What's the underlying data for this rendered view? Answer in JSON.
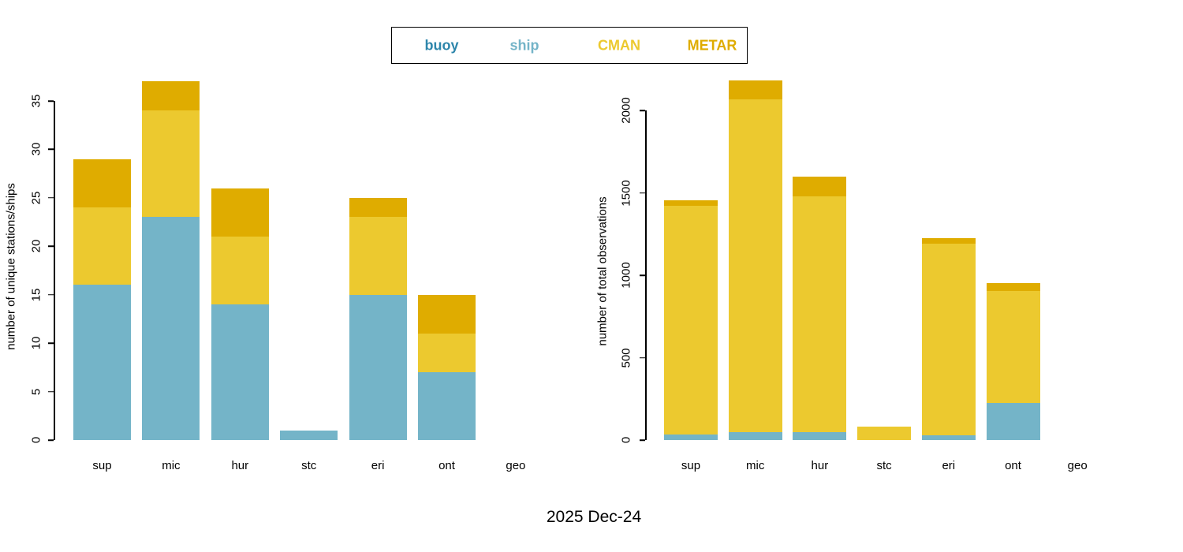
{
  "caption": "2025 Dec-24",
  "legend": {
    "position": "top-center",
    "items": [
      {
        "label": "buoy",
        "color": "#2E86AB"
      },
      {
        "label": "ship",
        "color": "#74B4C8"
      },
      {
        "label": "CMAN",
        "color": "#ECC92F"
      },
      {
        "label": "METAR",
        "color": "#DFAC00"
      }
    ]
  },
  "chart_data": [
    {
      "type": "bar",
      "stacked": true,
      "title": "",
      "xlabel": "",
      "ylabel": "number of unique stations/ships",
      "categories": [
        "sup",
        "mic",
        "hur",
        "stc",
        "eri",
        "ont",
        "geo"
      ],
      "yticks": [
        0,
        5,
        10,
        15,
        20,
        25,
        30,
        35
      ],
      "ylim": [
        0,
        38
      ],
      "grid": false,
      "series": [
        {
          "name": "buoy",
          "color": "#2E86AB",
          "values": [
            0,
            0,
            0,
            0,
            0,
            0,
            0
          ]
        },
        {
          "name": "ship",
          "color": "#74B4C8",
          "values": [
            16,
            23,
            14,
            1,
            15,
            7,
            0
          ]
        },
        {
          "name": "CMAN",
          "color": "#ECC92F",
          "values": [
            8,
            11,
            7,
            0,
            8,
            4,
            0
          ]
        },
        {
          "name": "METAR",
          "color": "#DFAC00",
          "values": [
            5,
            3,
            5,
            0,
            2,
            4,
            0
          ]
        }
      ],
      "totals": [
        29,
        37,
        26,
        1,
        25,
        15,
        0
      ]
    },
    {
      "type": "bar",
      "stacked": true,
      "title": "",
      "xlabel": "",
      "ylabel": "number of total observations",
      "categories": [
        "sup",
        "mic",
        "hur",
        "stc",
        "eri",
        "ont",
        "geo"
      ],
      "yticks": [
        0,
        500,
        1000,
        1500,
        2000
      ],
      "ylim": [
        0,
        2200
      ],
      "grid": false,
      "series": [
        {
          "name": "buoy",
          "color": "#2E86AB",
          "values": [
            0,
            0,
            0,
            0,
            0,
            0,
            0
          ]
        },
        {
          "name": "ship",
          "color": "#74B4C8",
          "values": [
            35,
            50,
            50,
            0,
            30,
            225,
            0
          ]
        },
        {
          "name": "CMAN",
          "color": "#ECC92F",
          "values": [
            1385,
            2015,
            1430,
            80,
            1160,
            680,
            0
          ]
        },
        {
          "name": "METAR",
          "color": "#DFAC00",
          "values": [
            35,
            115,
            120,
            0,
            35,
            45,
            0
          ]
        }
      ],
      "totals": [
        1455,
        2180,
        1600,
        80,
        1225,
        950,
        0
      ]
    }
  ]
}
